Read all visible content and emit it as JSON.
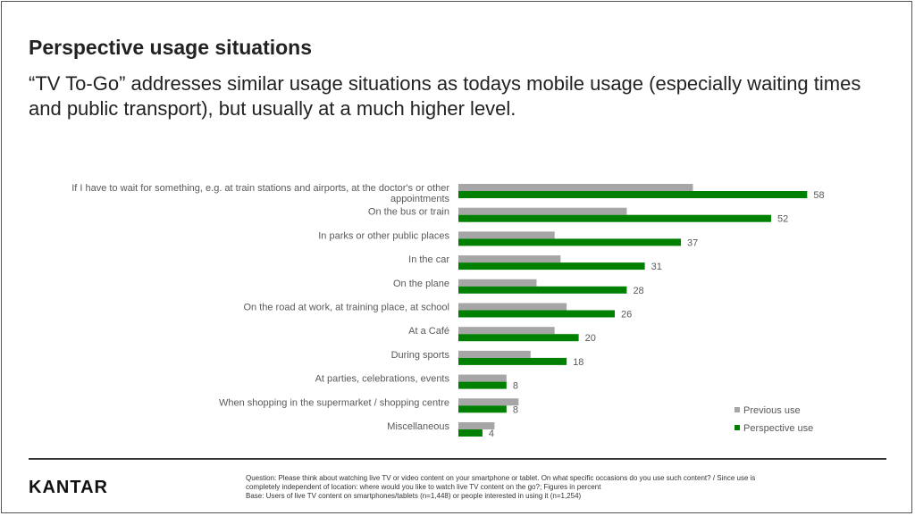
{
  "title": "Perspective usage situations",
  "subtitle": "“TV To-Go” addresses similar usage situations as todays mobile usage (especially waiting times and public transport), but usually at a much higher level.",
  "logo": "KANTAR",
  "footnote": {
    "question_line1": "Question: Please think about watching live TV or video content on your smartphone or tablet. On what specific occasions do you use such content? / Since use is",
    "question_line2": "completely independent of location: where would you like to watch live TV content on the go?; Figures in percent",
    "base": "Base: Users of live TV content on smartphones/tablets (n=1,448) or people interested in using it (n=1,254)"
  },
  "colors": {
    "previous": "#a6a6a6",
    "perspective": "#008000"
  },
  "chart_data": {
    "type": "bar",
    "orientation": "horizontal",
    "categories": [
      [
        "If I have to wait for something, e.g. at train stations and airports, at the doctor's or other",
        "appointments"
      ],
      [
        "On the bus or train"
      ],
      [
        "In parks or other public places"
      ],
      [
        "In the car"
      ],
      [
        "On the plane"
      ],
      [
        "On the road at work, at training place, at school"
      ],
      [
        "At a Café"
      ],
      [
        "During sports"
      ],
      [
        "At parties, celebrations, events"
      ],
      [
        "When shopping in the supermarket / shopping centre"
      ],
      [
        "Miscellaneous"
      ]
    ],
    "series": [
      {
        "name": "Previous use",
        "values": [
          39,
          28,
          16,
          17,
          13,
          18,
          16,
          12,
          8,
          10,
          6
        ]
      },
      {
        "name": "Perspective use",
        "values": [
          58,
          52,
          37,
          31,
          28,
          26,
          20,
          18,
          8,
          8,
          4
        ]
      }
    ],
    "data_labels_series": "Perspective use",
    "xlim": [
      0,
      100
    ],
    "legend_position": "bottom-right",
    "xlabel": "",
    "ylabel": "",
    "grid": false
  }
}
